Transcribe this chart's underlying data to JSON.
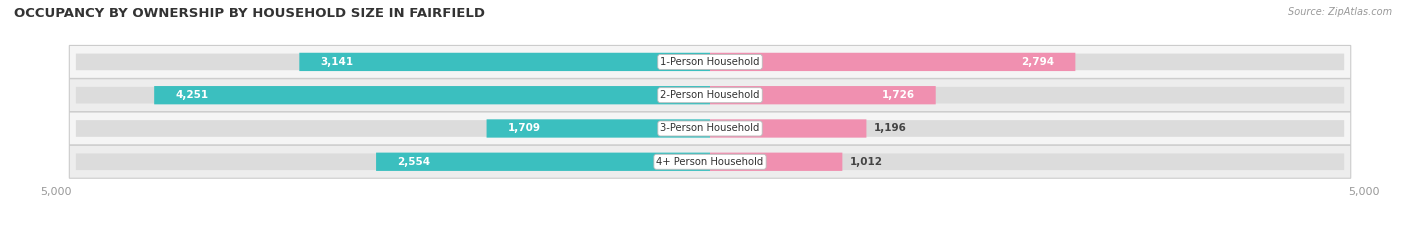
{
  "title": "OCCUPANCY BY OWNERSHIP BY HOUSEHOLD SIZE IN FAIRFIELD",
  "source": "Source: ZipAtlas.com",
  "categories": [
    "1-Person Household",
    "2-Person Household",
    "3-Person Household",
    "4+ Person Household"
  ],
  "owner_values": [
    3141,
    4251,
    1709,
    2554
  ],
  "renter_values": [
    2794,
    1726,
    1196,
    1012
  ],
  "max_val": 5000,
  "owner_color": "#3BBFBF",
  "renter_color": "#F090B0",
  "track_color": "#E0E0E0",
  "row_bg_light": "#F5F5F5",
  "row_bg_dark": "#EDEDED",
  "label_color": "#555555",
  "value_color": "#444444",
  "title_color": "#333333",
  "source_color": "#999999",
  "axis_label_color": "#999999",
  "figsize": [
    14.06,
    2.33
  ],
  "dpi": 100
}
